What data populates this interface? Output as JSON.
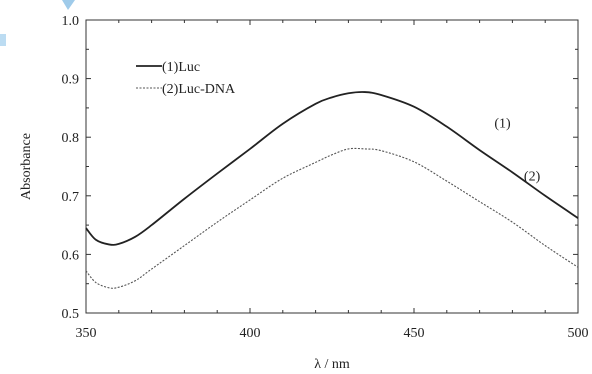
{
  "chart_data": {
    "type": "line",
    "xlabel": "λ / nm",
    "ylabel": "Absorbance",
    "xlim": [
      350,
      500
    ],
    "ylim": [
      0.5,
      1.0
    ],
    "xticks": [
      "350",
      "400",
      "450",
      "500"
    ],
    "yticks": [
      "0.5",
      "0.6",
      "0.7",
      "0.8",
      "0.9",
      "1.0"
    ],
    "grid": false,
    "legend_position": "top-left",
    "series": [
      {
        "name": "(1)Luc",
        "curve_label": "(1)",
        "style": "solid",
        "color": "#222222",
        "x": [
          350,
          353,
          357,
          360,
          365,
          370,
          380,
          390,
          400,
          410,
          420,
          425,
          430,
          435,
          440,
          450,
          460,
          470,
          480,
          490,
          500
        ],
        "y": [
          0.645,
          0.625,
          0.617,
          0.618,
          0.63,
          0.65,
          0.695,
          0.738,
          0.78,
          0.823,
          0.857,
          0.868,
          0.875,
          0.877,
          0.872,
          0.852,
          0.818,
          0.778,
          0.74,
          0.7,
          0.662
        ]
      },
      {
        "name": "(2)Luc-DNA",
        "curve_label": "(2)",
        "style": "dashed",
        "color": "#555555",
        "x": [
          350,
          353,
          357,
          360,
          365,
          370,
          380,
          390,
          400,
          410,
          420,
          425,
          430,
          435,
          440,
          450,
          460,
          470,
          480,
          490,
          500
        ],
        "y": [
          0.572,
          0.552,
          0.543,
          0.544,
          0.555,
          0.575,
          0.615,
          0.655,
          0.693,
          0.73,
          0.757,
          0.77,
          0.78,
          0.78,
          0.777,
          0.758,
          0.725,
          0.69,
          0.655,
          0.615,
          0.578
        ]
      }
    ]
  }
}
